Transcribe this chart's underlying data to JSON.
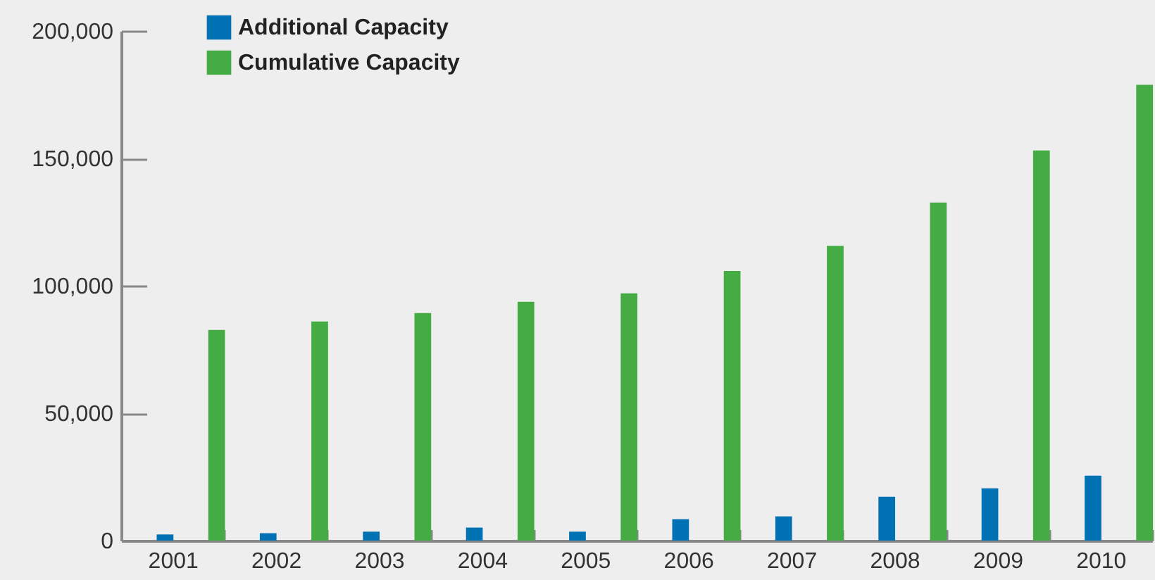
{
  "chart_data": {
    "type": "bar",
    "categories": [
      "2001",
      "2002",
      "2003",
      "2004",
      "2005",
      "2006",
      "2007",
      "2008",
      "2009",
      "2010"
    ],
    "series": [
      {
        "name": "Additional Capacity",
        "color": "#0071b2",
        "values": [
          2400,
          2900,
          3500,
          5100,
          3500,
          8400,
          9500,
          17200,
          20500,
          25500
        ]
      },
      {
        "name": "Cumulative Capacity",
        "color": "#45ab43",
        "values": [
          82700,
          86000,
          89300,
          93700,
          97000,
          105800,
          115700,
          132700,
          153100,
          178900
        ]
      }
    ],
    "ylim": [
      0,
      200000
    ],
    "yticks": [
      {
        "value": 0,
        "label": "0"
      },
      {
        "value": 50000,
        "label": "50,000"
      },
      {
        "value": 100000,
        "label": "100,000"
      },
      {
        "value": 150000,
        "label": "150,000"
      },
      {
        "value": 200000,
        "label": "200,000"
      }
    ],
    "grid": false,
    "legend": "top left"
  }
}
